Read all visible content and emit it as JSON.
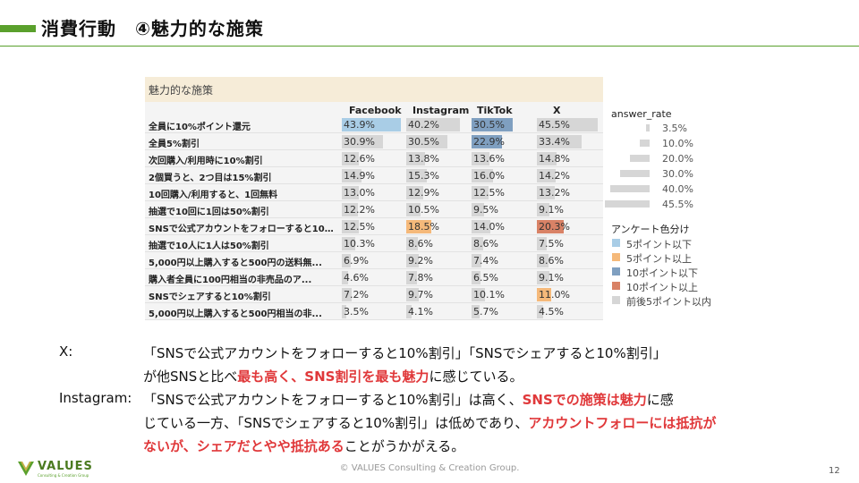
{
  "slide": {
    "title": "消費行動　④魅力的な施策",
    "copyright": "© VALUES Consulting & Creation Group.",
    "page_number": "12",
    "brand": {
      "name": "VALUES",
      "sub": "Consulting & Creation Group"
    },
    "accent_color": "#5aa02c"
  },
  "table": {
    "title": "魅力的な施策",
    "columns": [
      "Facebook",
      "Instagram",
      "TikTok",
      "X"
    ],
    "rows": [
      {
        "label": "全員に10%ポイント還元",
        "values": [
          "43.9%",
          "40.2%",
          "30.5%",
          "45.5%"
        ],
        "nums": [
          43.9,
          40.2,
          30.5,
          45.5
        ],
        "colors": [
          "#a9cde6",
          "#d6d6d6",
          "#7f9fc0",
          "#d6d6d6"
        ]
      },
      {
        "label": "全員5%割引",
        "values": [
          "30.9%",
          "30.5%",
          "22.9%",
          "33.4%"
        ],
        "nums": [
          30.9,
          30.5,
          22.9,
          33.4
        ],
        "colors": [
          "#d6d6d6",
          "#d6d6d6",
          "#7f9fc0",
          "#d6d6d6"
        ]
      },
      {
        "label": "次回購入/利用時に10%割引",
        "values": [
          "12.6%",
          "13.8%",
          "13.6%",
          "14.8%"
        ],
        "nums": [
          12.6,
          13.8,
          13.6,
          14.8
        ],
        "colors": [
          "#d6d6d6",
          "#d6d6d6",
          "#d6d6d6",
          "#d6d6d6"
        ]
      },
      {
        "label": "2個買うと、2つ目は15%割引",
        "values": [
          "14.9%",
          "15.3%",
          "16.0%",
          "14.2%"
        ],
        "nums": [
          14.9,
          15.3,
          16.0,
          14.2
        ],
        "colors": [
          "#d6d6d6",
          "#d6d6d6",
          "#d6d6d6",
          "#d6d6d6"
        ]
      },
      {
        "label": "10回購入/利用すると、1回無料",
        "values": [
          "13.0%",
          "12.9%",
          "12.5%",
          "13.2%"
        ],
        "nums": [
          13.0,
          12.9,
          12.5,
          13.2
        ],
        "colors": [
          "#d6d6d6",
          "#d6d6d6",
          "#d6d6d6",
          "#d6d6d6"
        ]
      },
      {
        "label": "抽選で10回に1回は50%割引",
        "values": [
          "12.2%",
          "10.5%",
          "9.5%",
          "9.1%"
        ],
        "nums": [
          12.2,
          10.5,
          9.5,
          9.1
        ],
        "colors": [
          "#d6d6d6",
          "#d6d6d6",
          "#d6d6d6",
          "#d6d6d6"
        ]
      },
      {
        "label": "SNSで公式アカウントをフォローすると10%...",
        "values": [
          "12.5%",
          "18.5%",
          "14.0%",
          "20.3%"
        ],
        "nums": [
          12.5,
          18.5,
          14.0,
          20.3
        ],
        "colors": [
          "#d6d6d6",
          "#f5b97a",
          "#d6d6d6",
          "#d98266"
        ]
      },
      {
        "label": "抽選で10人に1人は50%割引",
        "values": [
          "10.3%",
          "8.6%",
          "8.6%",
          "7.5%"
        ],
        "nums": [
          10.3,
          8.6,
          8.6,
          7.5
        ],
        "colors": [
          "#d6d6d6",
          "#d6d6d6",
          "#d6d6d6",
          "#d6d6d6"
        ]
      },
      {
        "label": "5,000円以上購入すると500円の送料無...",
        "values": [
          "6.9%",
          "9.2%",
          "7.4%",
          "8.6%"
        ],
        "nums": [
          6.9,
          9.2,
          7.4,
          8.6
        ],
        "colors": [
          "#d6d6d6",
          "#d6d6d6",
          "#d6d6d6",
          "#d6d6d6"
        ]
      },
      {
        "label": "購入者全員に100円相当の非売品のア...",
        "values": [
          "4.6%",
          "7.8%",
          "6.5%",
          "9.1%"
        ],
        "nums": [
          4.6,
          7.8,
          6.5,
          9.1
        ],
        "colors": [
          "#d6d6d6",
          "#d6d6d6",
          "#d6d6d6",
          "#d6d6d6"
        ]
      },
      {
        "label": "SNSでシェアすると10%割引",
        "values": [
          "7.2%",
          "9.7%",
          "10.1%",
          "11.0%"
        ],
        "nums": [
          7.2,
          9.7,
          10.1,
          11.0
        ],
        "colors": [
          "#d6d6d6",
          "#d6d6d6",
          "#d6d6d6",
          "#f5b97a"
        ]
      },
      {
        "label": "5,000円以上購入すると500円相当の非...",
        "values": [
          "3.5%",
          "4.1%",
          "5.7%",
          "4.5%"
        ],
        "nums": [
          3.5,
          4.1,
          5.7,
          4.5
        ],
        "colors": [
          "#d6d6d6",
          "#d6d6d6",
          "#d6d6d6",
          "#d6d6d6"
        ]
      }
    ]
  },
  "legend": {
    "size_title": "answer_rate",
    "sizes": [
      {
        "label": "3.5%",
        "value": 3.5
      },
      {
        "label": "10.0%",
        "value": 10.0
      },
      {
        "label": "20.0%",
        "value": 20.0
      },
      {
        "label": "30.0%",
        "value": 30.0
      },
      {
        "label": "40.0%",
        "value": 40.0
      },
      {
        "label": "45.5%",
        "value": 45.5
      }
    ],
    "color_title": "アンケート色分け",
    "colors": [
      {
        "label": "5ポイント以下",
        "color": "#a9cde6"
      },
      {
        "label": "5ポイント以上",
        "color": "#f5b97a"
      },
      {
        "label": "10ポイント以下",
        "color": "#7f9fc0"
      },
      {
        "label": "10ポイント以上",
        "color": "#d98266"
      },
      {
        "label": "前後5ポイント以内",
        "color": "#d6d6d6"
      }
    ]
  },
  "commentary": {
    "x_label": "X:",
    "x_line1": "「SNSで公式アカウントをフォローすると10%割引」「SNSでシェアすると10%割引」",
    "x_line2_a": "が他SNSと比べ",
    "x_line2_b": "最も高く、SNS割引を最も魅力",
    "x_line2_c": "に感じている。",
    "ig_label": "Instagram:",
    "ig_line1_a": "「SNSで公式アカウントをフォローすると10%割引」は高く、",
    "ig_line1_b": "SNSでの施策は魅力",
    "ig_line1_c": "に感",
    "ig_line2_a": "じている一方、「SNSでシェアすると10%割引」は低めであり、",
    "ig_line2_b": "アカウントフォローには抵抗が",
    "ig_line3_a": "ないが、シェアだとやや抵抗ある",
    "ig_line3_b": "ことがうかがえる。"
  }
}
